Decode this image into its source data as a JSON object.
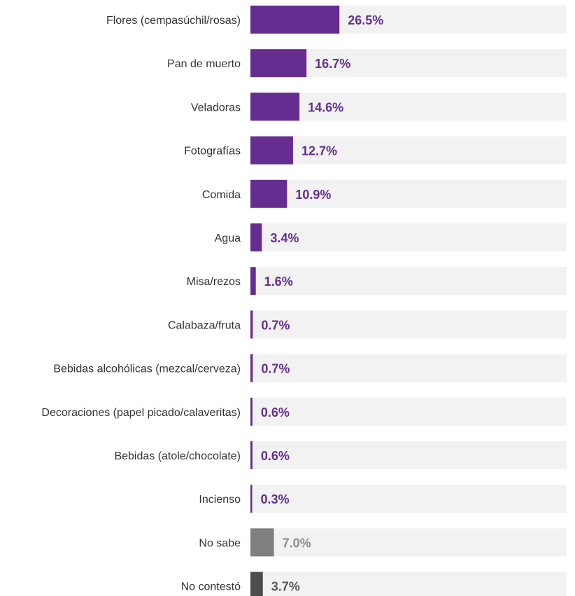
{
  "chart_data": {
    "type": "bar",
    "orientation": "horizontal",
    "categories": [
      "Flores (cempasúchil/rosas)",
      "Pan de muerto",
      "Veladoras",
      "Fotografías",
      "Comida",
      "Agua",
      "Misa/rezos",
      "Calabaza/fruta",
      "Bebidas alcohólicas (mezcal/cerveza)",
      "Decoraciones (papel picado/calaveritas)",
      "Bebidas (atole/chocolate)",
      "Incienso",
      "No sabe",
      "No contestó"
    ],
    "values": [
      26.5,
      16.7,
      14.6,
      12.7,
      10.9,
      3.4,
      1.6,
      0.7,
      0.7,
      0.6,
      0.6,
      0.3,
      7.0,
      3.7
    ],
    "value_labels": [
      "26.5%",
      "16.7%",
      "14.6%",
      "12.7%",
      "10.9%",
      "3.4%",
      "1.6%",
      "0.7%",
      "0.7%",
      "0.6%",
      "0.6%",
      "0.3%",
      "7.0%",
      "3.7%"
    ],
    "bar_colors": [
      "#662d91",
      "#662d91",
      "#662d91",
      "#662d91",
      "#662d91",
      "#662d91",
      "#662d91",
      "#662d91",
      "#662d91",
      "#662d91",
      "#662d91",
      "#662d91",
      "#7f7f7f",
      "#4d4d4d"
    ],
    "label_colors": [
      "#662d91",
      "#662d91",
      "#662d91",
      "#662d91",
      "#662d91",
      "#662d91",
      "#662d91",
      "#662d91",
      "#662d91",
      "#662d91",
      "#662d91",
      "#662d91",
      "#8c8c8c",
      "#595959"
    ],
    "background_track_color": "#f2f2f2",
    "xlim": [
      0,
      100
    ],
    "grid": false,
    "legend": false
  }
}
